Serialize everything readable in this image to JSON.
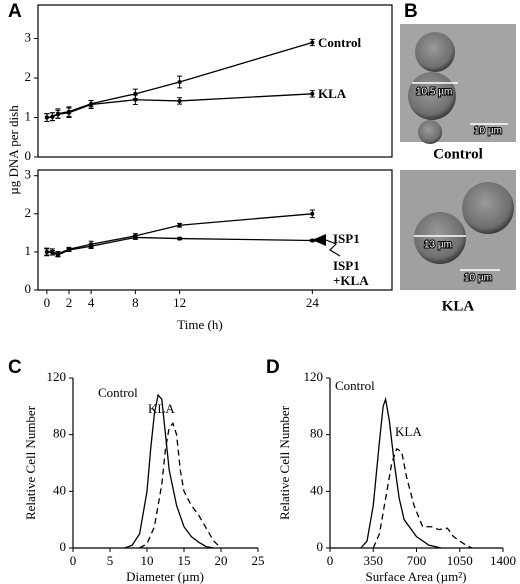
{
  "panel_labels": [
    "A",
    "B",
    "C",
    "D"
  ],
  "chart_data": [
    {
      "type": "line",
      "ylabel": "µg DNA per dish",
      "box": true,
      "x": [
        0,
        0.5,
        1,
        2,
        4,
        8,
        12,
        24
      ],
      "xlim": [
        -0.8,
        31.2
      ],
      "ylim": [
        0,
        3.85
      ],
      "yticks": [
        0,
        1,
        2,
        3
      ],
      "series": [
        {
          "name": "Control",
          "color": "#000000",
          "style": "solid",
          "values": [
            1.0,
            1.02,
            1.1,
            1.15,
            1.35,
            1.6,
            1.9,
            2.9
          ],
          "errors": [
            0.1,
            0.1,
            0.12,
            0.12,
            0.08,
            0.12,
            0.15,
            0.08
          ]
        },
        {
          "name": "KLA",
          "color": "#000000",
          "style": "solid",
          "values": [
            1.0,
            1.02,
            1.08,
            1.12,
            1.33,
            1.45,
            1.42,
            1.6
          ],
          "errors": [
            0.1,
            0.1,
            0.1,
            0.12,
            0.1,
            0.12,
            0.08,
            0.08
          ]
        }
      ]
    },
    {
      "type": "line",
      "xlabel": "Time (h)",
      "box": true,
      "x": [
        0,
        0.5,
        1,
        2,
        4,
        8,
        12,
        24
      ],
      "xlim": [
        -0.8,
        31.2
      ],
      "ylim": [
        0,
        3.15
      ],
      "xticks": [
        0,
        2,
        4,
        8,
        12,
        24
      ],
      "yticks": [
        0,
        1,
        2,
        3
      ],
      "series": [
        {
          "name": "ISP1",
          "color": "#000000",
          "style": "solid",
          "values": [
            1.0,
            1.0,
            0.95,
            1.07,
            1.2,
            1.42,
            1.7,
            2.0
          ],
          "errors": [
            0.1,
            0.08,
            0.06,
            0.05,
            0.08,
            0.06,
            0.05,
            0.1
          ]
        },
        {
          "name": "ISP1 +KLA",
          "color": "#000000",
          "style": "solid",
          "values": [
            1.0,
            0.98,
            0.92,
            1.05,
            1.15,
            1.38,
            1.35,
            1.3
          ],
          "errors": [
            0.08,
            0.06,
            0.05,
            0.04,
            0.06,
            0.05,
            0.03,
            0.03
          ]
        }
      ]
    },
    {
      "type": "line",
      "xlabel": "Diameter (µm)",
      "ylabel": "Relative Cell Number",
      "box": false,
      "xlim": [
        0,
        25
      ],
      "ylim": [
        0,
        120
      ],
      "xticks": [
        0,
        5,
        10,
        15,
        20,
        25
      ],
      "yticks": [
        0,
        40,
        80,
        120
      ],
      "series": [
        {
          "name": "Control",
          "color": "#000000",
          "style": "solid",
          "x": [
            7,
            8,
            9,
            10,
            10.5,
            11,
            11.5,
            12,
            12.5,
            13,
            14,
            15,
            16,
            17,
            18,
            19
          ],
          "values": [
            0,
            2,
            10,
            40,
            70,
            95,
            108,
            105,
            80,
            55,
            30,
            15,
            8,
            4,
            1,
            0
          ]
        },
        {
          "name": "KLA",
          "color": "#000000",
          "style": "dashed",
          "x": [
            9,
            10,
            11,
            12,
            12.5,
            13,
            13.5,
            14,
            14.5,
            15,
            16,
            17,
            18,
            19,
            20
          ],
          "values": [
            0,
            3,
            15,
            45,
            70,
            85,
            88,
            80,
            55,
            40,
            30,
            23,
            14,
            5,
            0
          ]
        }
      ]
    },
    {
      "type": "line",
      "xlabel": "Surface Area (µm²)",
      "ylabel": "Relative Cell Number",
      "box": false,
      "xlim": [
        0,
        1400
      ],
      "ylim": [
        0,
        120
      ],
      "xticks": [
        0,
        350,
        700,
        1050,
        1400
      ],
      "yticks": [
        0,
        40,
        80,
        120
      ],
      "series": [
        {
          "name": "Control",
          "color": "#000000",
          "style": "solid",
          "x": [
            250,
            300,
            350,
            400,
            430,
            450,
            480,
            520,
            560,
            600,
            700,
            800,
            900
          ],
          "values": [
            0,
            5,
            30,
            75,
            100,
            105,
            90,
            60,
            35,
            20,
            8,
            2,
            0
          ]
        },
        {
          "name": "KLA",
          "color": "#000000",
          "style": "dashed",
          "x": [
            350,
            400,
            450,
            500,
            540,
            580,
            620,
            680,
            750,
            820,
            880,
            950,
            1000,
            1100,
            1150
          ],
          "values": [
            0,
            10,
            35,
            60,
            70,
            68,
            50,
            30,
            15,
            15,
            13,
            14,
            8,
            2,
            0
          ]
        }
      ]
    }
  ],
  "micrographs": [
    {
      "caption": "Control",
      "scale_labels": [
        "10.5 µm",
        "10 µm"
      ]
    },
    {
      "caption": "KLA",
      "scale_labels": [
        "13 µm",
        "10 µm"
      ]
    }
  ]
}
